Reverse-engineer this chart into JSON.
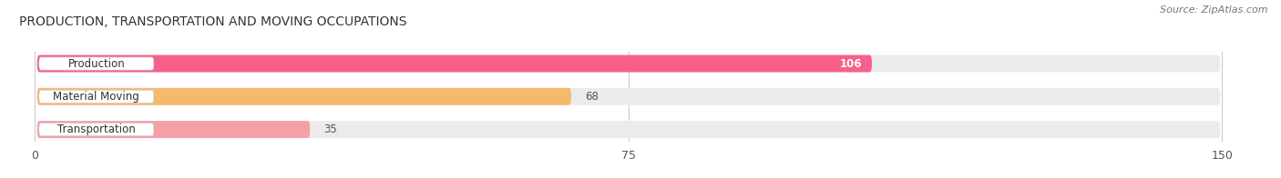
{
  "title": "PRODUCTION, TRANSPORTATION AND MOVING OCCUPATIONS",
  "source": "Source: ZipAtlas.com",
  "categories": [
    "Production",
    "Material Moving",
    "Transportation"
  ],
  "values": [
    106,
    68,
    35
  ],
  "bar_colors": [
    "#F7608A",
    "#F5B96E",
    "#F5A0A8"
  ],
  "bar_bg_colors": [
    "#EBEBEB",
    "#EBEBEB",
    "#EBEBEB"
  ],
  "value_colors": [
    "white",
    "#555555",
    "#555555"
  ],
  "xlim": [
    0,
    150
  ],
  "xticks": [
    0,
    75,
    150
  ],
  "figsize": [
    14.06,
    1.96
  ],
  "dpi": 100
}
